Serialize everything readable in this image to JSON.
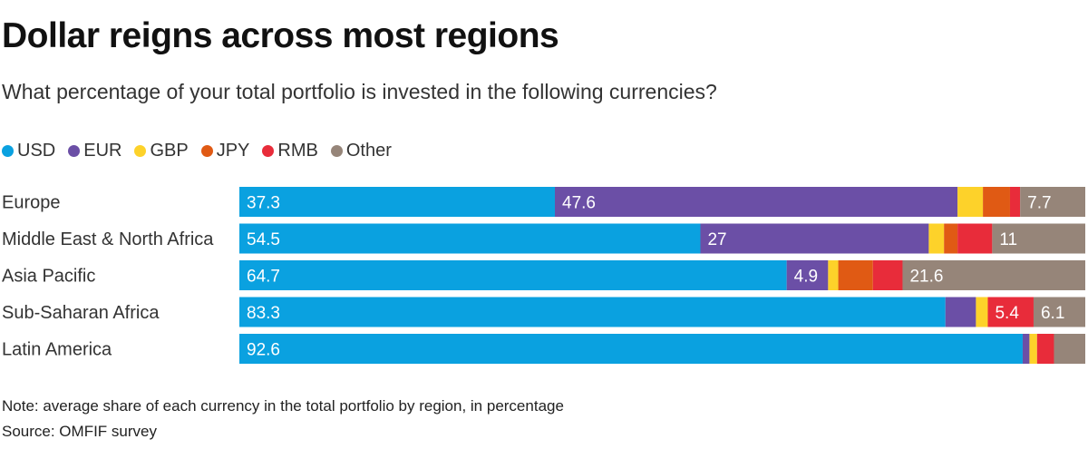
{
  "title": "Dollar reigns across most regions",
  "subtitle": "What percentage of your total portfolio is invested in the following currencies?",
  "note": "Note: average share of each currency in the total portfolio by region, in percentage",
  "source": "Source: OMFIF survey",
  "chart_data": {
    "type": "bar",
    "orientation": "horizontal",
    "stacked": true,
    "title": "Dollar reigns across most regions",
    "xlim": [
      0,
      100
    ],
    "categories": [
      "Europe",
      "Middle East & North Africa",
      "Asia Pacific",
      "Sub-Saharan Africa",
      "Latin America"
    ],
    "series": [
      {
        "name": "USD",
        "color": "#0aa1e0",
        "values": [
          37.3,
          54.5,
          64.7,
          83.3,
          92.6
        ]
      },
      {
        "name": "EUR",
        "color": "#6b4fa6",
        "values": [
          47.6,
          27,
          4.9,
          3.6,
          0.8
        ]
      },
      {
        "name": "GBP",
        "color": "#fdd22a",
        "values": [
          3.0,
          1.8,
          1.2,
          1.4,
          0.9
        ]
      },
      {
        "name": "JPY",
        "color": "#e05a14",
        "values": [
          3.2,
          1.6,
          4.1,
          0.0,
          0.0
        ]
      },
      {
        "name": "RMB",
        "color": "#e82c3a",
        "values": [
          1.2,
          4.1,
          3.5,
          5.4,
          2.0
        ]
      },
      {
        "name": "Other",
        "color": "#968579",
        "values": [
          7.7,
          11,
          21.6,
          6.1,
          3.7
        ]
      }
    ],
    "data_labels": [
      [
        {
          "series": 0,
          "text": "37.3"
        },
        {
          "series": 1,
          "text": "47.6"
        },
        {
          "series": 5,
          "text": "7.7"
        }
      ],
      [
        {
          "series": 0,
          "text": "54.5"
        },
        {
          "series": 1,
          "text": "27"
        },
        {
          "series": 5,
          "text": "11"
        }
      ],
      [
        {
          "series": 0,
          "text": "64.7"
        },
        {
          "series": 1,
          "text": "4.9"
        },
        {
          "series": 5,
          "text": "21.6"
        }
      ],
      [
        {
          "series": 0,
          "text": "83.3"
        },
        {
          "series": 4,
          "text": "5.4"
        },
        {
          "series": 5,
          "text": "6.1"
        }
      ],
      [
        {
          "series": 0,
          "text": "92.6"
        }
      ]
    ],
    "legend": "top-left",
    "grid": false
  }
}
